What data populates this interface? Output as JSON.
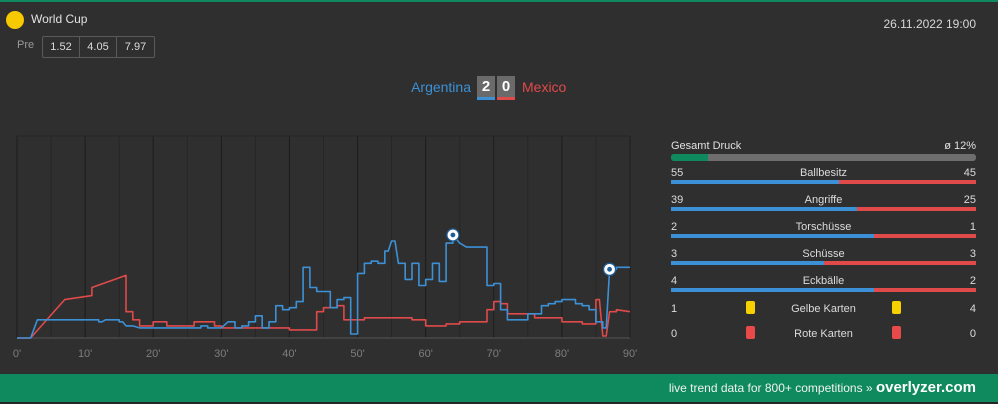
{
  "league": {
    "name": "World Cup"
  },
  "datetime": "26.11.2022 19:00",
  "odds": {
    "label": "Pre",
    "values": [
      "1.52",
      "4.05",
      "7.97"
    ]
  },
  "match": {
    "home": "Argentina",
    "away": "Mexico",
    "home_score": "2",
    "away_score": "0",
    "home_color": "#3c91d6",
    "away_color": "#e04a4a"
  },
  "chart_data": {
    "type": "line",
    "x_ticks": [
      "0'",
      "10'",
      "20'",
      "30'",
      "40'",
      "50'",
      "60'",
      "70'",
      "80'",
      "90'"
    ],
    "xlim": [
      0,
      90
    ],
    "ylim": [
      0,
      100
    ],
    "goals": [
      {
        "team": "home",
        "minute": 64,
        "value": 51
      },
      {
        "team": "home",
        "minute": 87,
        "value": 34
      }
    ],
    "series": [
      {
        "team": "home",
        "points": [
          [
            0,
            0
          ],
          [
            2,
            0
          ],
          [
            3,
            9
          ],
          [
            11,
            9
          ],
          [
            12,
            9
          ],
          [
            12,
            8
          ],
          [
            12.5,
            8
          ],
          [
            13,
            9
          ],
          [
            14,
            9
          ],
          [
            15,
            9
          ],
          [
            15,
            8
          ],
          [
            15.5,
            8
          ],
          [
            16,
            6
          ],
          [
            17,
            6
          ],
          [
            18,
            5
          ],
          [
            26,
            5
          ],
          [
            27,
            5
          ],
          [
            27,
            6
          ],
          [
            28,
            6
          ],
          [
            28,
            5
          ],
          [
            30,
            5
          ],
          [
            31,
            8
          ],
          [
            32,
            8
          ],
          [
            32,
            5
          ],
          [
            33,
            5
          ],
          [
            33,
            6
          ],
          [
            34,
            6
          ],
          [
            34,
            8
          ],
          [
            35,
            8
          ],
          [
            35,
            11
          ],
          [
            36,
            11
          ],
          [
            36,
            5
          ],
          [
            37,
            5
          ],
          [
            37,
            8
          ],
          [
            38,
            8
          ],
          [
            38,
            16
          ],
          [
            39,
            16
          ],
          [
            39,
            14
          ],
          [
            40,
            14
          ],
          [
            40,
            15
          ],
          [
            41,
            15
          ],
          [
            41,
            18
          ],
          [
            42,
            18
          ],
          [
            42,
            35
          ],
          [
            43,
            35
          ],
          [
            43,
            25
          ],
          [
            44,
            25
          ],
          [
            44,
            23
          ],
          [
            46,
            23
          ],
          [
            46,
            15
          ],
          [
            47,
            15
          ],
          [
            47,
            19
          ],
          [
            48,
            19
          ],
          [
            48,
            20
          ],
          [
            49,
            20
          ],
          [
            49,
            2
          ],
          [
            50,
            2
          ],
          [
            50,
            32
          ],
          [
            51,
            32
          ],
          [
            51,
            37
          ],
          [
            52,
            37
          ],
          [
            52,
            38
          ],
          [
            53,
            38
          ],
          [
            53,
            37
          ],
          [
            54,
            37
          ],
          [
            54,
            43
          ],
          [
            54.5,
            43
          ],
          [
            55,
            48
          ],
          [
            55.5,
            48
          ],
          [
            56,
            37
          ],
          [
            57,
            37
          ],
          [
            57,
            29
          ],
          [
            58,
            29
          ],
          [
            58,
            37
          ],
          [
            59,
            37
          ],
          [
            59,
            26
          ],
          [
            60,
            26
          ],
          [
            60,
            29
          ],
          [
            61,
            29
          ],
          [
            61,
            37
          ],
          [
            62,
            37
          ],
          [
            62,
            28
          ],
          [
            63,
            28
          ],
          [
            63,
            47
          ],
          [
            64,
            47
          ],
          [
            64,
            51
          ],
          [
            65,
            47
          ],
          [
            66,
            45
          ],
          [
            69,
            45
          ],
          [
            69,
            26
          ],
          [
            70,
            26
          ],
          [
            70,
            27
          ],
          [
            71,
            27
          ],
          [
            71,
            14
          ],
          [
            72,
            14
          ],
          [
            72,
            9
          ],
          [
            75,
            9
          ],
          [
            75,
            12
          ],
          [
            77,
            12
          ],
          [
            77,
            16
          ],
          [
            78,
            16
          ],
          [
            78,
            17
          ],
          [
            79,
            17
          ],
          [
            79,
            18
          ],
          [
            80,
            18
          ],
          [
            80,
            19
          ],
          [
            82,
            19
          ],
          [
            82,
            17
          ],
          [
            83,
            17
          ],
          [
            83,
            16
          ],
          [
            84,
            16
          ],
          [
            84,
            14
          ],
          [
            85,
            14
          ],
          [
            85,
            8
          ],
          [
            86,
            8
          ],
          [
            86,
            5
          ],
          [
            86.5,
            5
          ],
          [
            87,
            34
          ],
          [
            88,
            34
          ],
          [
            88,
            35
          ],
          [
            90,
            35
          ]
        ]
      },
      {
        "team": "away",
        "points": [
          [
            0,
            0
          ],
          [
            2,
            0
          ],
          [
            7,
            19
          ],
          [
            11,
            21
          ],
          [
            11,
            25
          ],
          [
            16,
            31
          ],
          [
            16,
            13
          ],
          [
            17,
            13
          ],
          [
            17,
            9
          ],
          [
            18,
            9
          ],
          [
            18,
            6
          ],
          [
            20,
            6
          ],
          [
            20,
            8
          ],
          [
            22,
            8
          ],
          [
            22,
            6
          ],
          [
            26,
            6
          ],
          [
            26,
            8
          ],
          [
            29,
            8
          ],
          [
            29,
            6
          ],
          [
            30,
            6
          ],
          [
            30,
            5
          ],
          [
            40,
            5
          ],
          [
            40,
            4
          ],
          [
            44,
            4
          ],
          [
            44,
            13
          ],
          [
            45,
            13
          ],
          [
            45,
            15
          ],
          [
            47,
            15
          ],
          [
            47,
            16
          ],
          [
            48,
            16
          ],
          [
            48,
            9
          ],
          [
            51,
            9
          ],
          [
            51,
            10
          ],
          [
            58,
            10
          ],
          [
            58,
            9
          ],
          [
            60,
            9
          ],
          [
            60,
            6
          ],
          [
            63,
            6
          ],
          [
            63,
            7
          ],
          [
            65,
            7
          ],
          [
            65,
            8
          ],
          [
            69,
            8
          ],
          [
            69,
            14
          ],
          [
            70,
            14
          ],
          [
            70,
            18
          ],
          [
            71,
            18
          ],
          [
            71,
            17
          ],
          [
            72,
            17
          ],
          [
            72,
            12
          ],
          [
            76,
            12
          ],
          [
            76,
            10
          ],
          [
            80,
            10
          ],
          [
            80,
            8
          ],
          [
            83,
            8
          ],
          [
            83,
            7
          ],
          [
            85,
            7
          ],
          [
            85,
            19
          ],
          [
            85.5,
            19
          ],
          [
            86,
            1
          ],
          [
            86.5,
            1
          ],
          [
            87,
            13
          ],
          [
            88,
            13
          ],
          [
            88,
            14
          ],
          [
            90,
            13
          ]
        ]
      }
    ]
  },
  "stats": {
    "pressure": {
      "label": "Gesamt Druck",
      "value": "ø 12%",
      "fraction": 0.12
    },
    "rows": [
      {
        "label": "Ballbesitz",
        "home": "55",
        "away": "45"
      },
      {
        "label": "Angriffe",
        "home": "39",
        "away": "25"
      },
      {
        "label": "Torschüsse",
        "home": "2",
        "away": "1"
      },
      {
        "label": "Schüsse",
        "home": "3",
        "away": "3"
      },
      {
        "label": "Eckbälle",
        "home": "4",
        "away": "2"
      }
    ],
    "yellow_cards": {
      "label": "Gelbe Karten",
      "home": "1",
      "away": "4"
    },
    "red_cards": {
      "label": "Rote Karten",
      "home": "0",
      "away": "0"
    }
  },
  "footer": {
    "text": "live trend data for 800+ competitions » ",
    "brand": "overlyzer.com"
  }
}
